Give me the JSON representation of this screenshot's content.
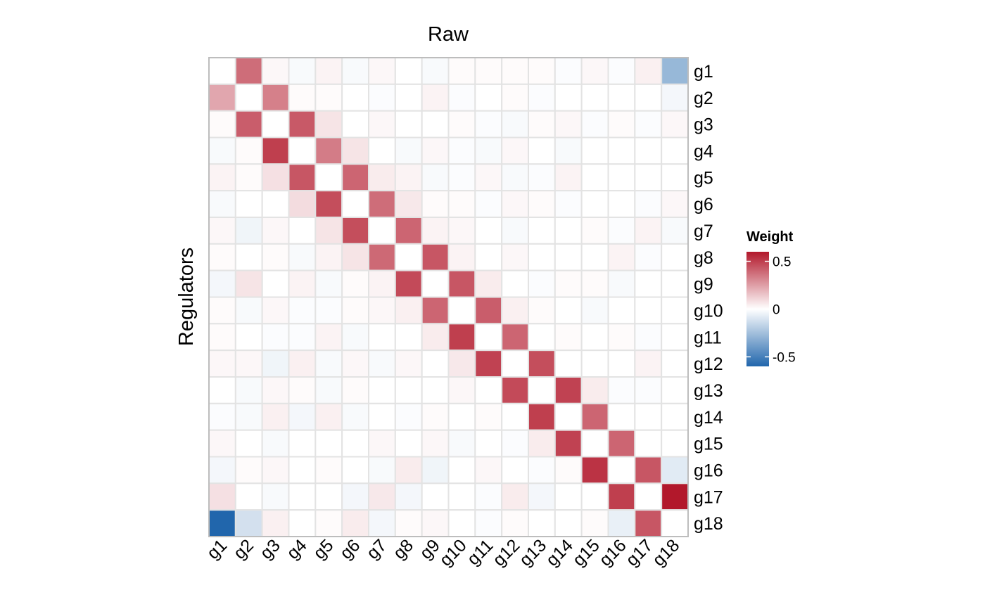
{
  "chart_data": {
    "type": "heatmap",
    "title": "Raw",
    "xlabel": "",
    "ylabel": "Regulators",
    "x_categories": [
      "g1",
      "g2",
      "g3",
      "g4",
      "g5",
      "g6",
      "g7",
      "g8",
      "g9",
      "g10",
      "g11",
      "g12",
      "g13",
      "g14",
      "g15",
      "g16",
      "g17",
      "g18"
    ],
    "y_categories": [
      "g1",
      "g2",
      "g3",
      "g4",
      "g5",
      "g6",
      "g7",
      "g8",
      "g9",
      "g10",
      "g11",
      "g12",
      "g13",
      "g14",
      "g15",
      "g16",
      "g17",
      "g18"
    ],
    "values": [
      [
        0,
        0.38,
        0.02,
        -0.02,
        0.03,
        -0.02,
        0.02,
        0,
        -0.02,
        0.01,
        0.01,
        0.01,
        0.01,
        -0.01,
        0.02,
        -0.01,
        0.04,
        -0.28
      ],
      [
        0.23,
        0,
        0.33,
        0.01,
        0.01,
        0,
        -0.01,
        0,
        0.03,
        -0.01,
        0,
        0.01,
        -0.01,
        0,
        0,
        0,
        0,
        -0.03
      ],
      [
        0.01,
        0.42,
        0,
        0.43,
        0.07,
        0,
        0.02,
        0,
        0,
        0.01,
        -0.01,
        -0.02,
        0.01,
        0.02,
        -0.01,
        0.01,
        -0.01,
        0.02
      ],
      [
        -0.02,
        0.01,
        0.5,
        0,
        0.34,
        0.07,
        0,
        -0.02,
        0.02,
        -0.01,
        -0.02,
        0.02,
        0,
        -0.02,
        0,
        0,
        0,
        0
      ],
      [
        0.03,
        0.01,
        0.08,
        0.44,
        0,
        0.4,
        0.05,
        0.03,
        -0.02,
        -0.01,
        0.02,
        -0.02,
        -0.01,
        0.03,
        0,
        0,
        0,
        0
      ],
      [
        -0.02,
        0,
        0,
        0.09,
        0.46,
        0,
        0.38,
        0.06,
        0.01,
        0.01,
        -0.01,
        0.02,
        0.01,
        -0.01,
        0,
        0,
        -0.01,
        0.02
      ],
      [
        0.02,
        -0.04,
        0.02,
        0,
        0.07,
        0.46,
        0,
        0.4,
        0.03,
        0.02,
        0,
        -0.02,
        0,
        0,
        0.01,
        -0.01,
        0.03,
        -0.02
      ],
      [
        0.01,
        0,
        0.01,
        -0.02,
        0.03,
        0.07,
        0.39,
        0,
        0.44,
        0.03,
        0,
        0.02,
        0,
        0,
        0,
        0.03,
        -0.01,
        0
      ],
      [
        -0.03,
        0.07,
        0,
        0.03,
        -0.02,
        0.01,
        0.03,
        0.47,
        0,
        0.44,
        0.05,
        0,
        -0.01,
        0.01,
        0.01,
        -0.02,
        0,
        0
      ],
      [
        0.01,
        -0.02,
        0.02,
        -0.01,
        -0.01,
        0.01,
        0.02,
        0.04,
        0.4,
        0,
        0.42,
        0.04,
        0.01,
        0,
        -0.02,
        0,
        0,
        0
      ],
      [
        0.01,
        0,
        -0.01,
        -0.01,
        0.03,
        -0.02,
        0,
        0,
        0.05,
        0.5,
        0,
        0.4,
        0,
        0.01,
        0,
        0.01,
        -0.01,
        0
      ],
      [
        0.02,
        0.02,
        -0.04,
        0.04,
        -0.02,
        0.02,
        -0.02,
        0.02,
        0,
        0.06,
        0.49,
        0,
        0.46,
        0,
        0,
        0,
        0.03,
        0
      ],
      [
        0,
        -0.02,
        0.02,
        0.01,
        -0.02,
        0.01,
        0,
        0,
        0,
        0.02,
        0,
        0.47,
        0,
        0.49,
        0.05,
        -0.01,
        -0.01,
        0
      ],
      [
        -0.01,
        -0.02,
        0.04,
        -0.03,
        0.04,
        -0.02,
        0,
        -0.01,
        0.01,
        0,
        0.01,
        0,
        0.5,
        0,
        0.4,
        0,
        0,
        0
      ],
      [
        0.02,
        0,
        -0.02,
        0,
        0,
        0,
        0.02,
        0,
        0.02,
        -0.02,
        0,
        -0.01,
        0.05,
        0.49,
        0,
        0.4,
        0,
        0
      ],
      [
        -0.03,
        0.01,
        0.02,
        0,
        0.01,
        0,
        -0.02,
        0.05,
        -0.04,
        0,
        0.02,
        0,
        -0.01,
        0.01,
        0.53,
        0,
        0.44,
        -0.08
      ],
      [
        0.08,
        0,
        -0.02,
        0,
        0,
        -0.03,
        0.06,
        -0.03,
        0,
        0,
        -0.01,
        0.05,
        -0.03,
        0,
        0,
        0.5,
        0,
        0.6
      ],
      [
        -0.6,
        -0.12,
        0.04,
        0,
        0.01,
        0.05,
        -0.03,
        0.01,
        0.02,
        0,
        -0.01,
        0.01,
        0,
        0,
        0.01,
        -0.06,
        0.44,
        0
      ]
    ],
    "color_scale": {
      "name": "Weight",
      "ticks": [
        "0.5",
        "0",
        "-0.5"
      ],
      "tick_values": [
        0.5,
        0,
        -0.5
      ],
      "min": -0.6,
      "max": 0.6,
      "low_color": "#2166ac",
      "mid_color": "#ffffff",
      "high_color": "#b2182b"
    },
    "grid": true,
    "legend_position": "right"
  }
}
